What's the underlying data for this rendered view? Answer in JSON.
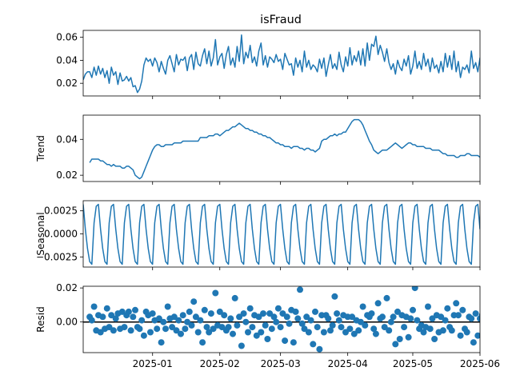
{
  "chart_data": {
    "type": "line",
    "title": "isFraud",
    "x_tick_labels": [
      "2025-01",
      "2025-02",
      "2025-03",
      "2025-04",
      "2025-05",
      "2025-06"
    ],
    "x_tick_dates": [
      "2025-01-01",
      "2025-02-01",
      "2025-03-01",
      "2025-04-01",
      "2025-05-01",
      "2025-06-01"
    ],
    "x_range": [
      "2024-11-30",
      "2025-06-01"
    ],
    "line_color": "#1f77b4",
    "panels": [
      {
        "name": "observed",
        "ylabel": "",
        "ylim": [
          0.009,
          0.066
        ],
        "yticks": [
          0.02,
          0.04,
          0.06
        ],
        "ytick_labels": [
          "0.02",
          "0.04",
          "0.06"
        ],
        "kind": "line",
        "values": [
          0.023,
          0.028,
          0.03,
          0.03,
          0.025,
          0.034,
          0.027,
          0.035,
          0.028,
          0.033,
          0.025,
          0.031,
          0.02,
          0.034,
          0.027,
          0.03,
          0.019,
          0.029,
          0.022,
          0.023,
          0.026,
          0.022,
          0.025,
          0.017,
          0.018,
          0.012,
          0.015,
          0.022,
          0.036,
          0.042,
          0.039,
          0.041,
          0.035,
          0.042,
          0.038,
          0.03,
          0.039,
          0.033,
          0.028,
          0.04,
          0.044,
          0.037,
          0.03,
          0.045,
          0.036,
          0.041,
          0.04,
          0.043,
          0.031,
          0.042,
          0.045,
          0.032,
          0.047,
          0.037,
          0.035,
          0.044,
          0.05,
          0.037,
          0.048,
          0.035,
          0.042,
          0.058,
          0.036,
          0.043,
          0.046,
          0.033,
          0.045,
          0.052,
          0.036,
          0.042,
          0.034,
          0.052,
          0.039,
          0.062,
          0.037,
          0.047,
          0.042,
          0.053,
          0.038,
          0.043,
          0.035,
          0.048,
          0.055,
          0.036,
          0.044,
          0.034,
          0.043,
          0.041,
          0.038,
          0.045,
          0.039,
          0.041,
          0.032,
          0.046,
          0.041,
          0.036,
          0.037,
          0.027,
          0.042,
          0.034,
          0.04,
          0.03,
          0.048,
          0.034,
          0.04,
          0.032,
          0.036,
          0.034,
          0.03,
          0.041,
          0.033,
          0.042,
          0.026,
          0.036,
          0.045,
          0.033,
          0.037,
          0.032,
          0.047,
          0.036,
          0.03,
          0.043,
          0.035,
          0.051,
          0.036,
          0.044,
          0.039,
          0.048,
          0.036,
          0.05,
          0.035,
          0.055,
          0.04,
          0.054,
          0.052,
          0.061,
          0.045,
          0.053,
          0.047,
          0.039,
          0.05,
          0.038,
          0.032,
          0.037,
          0.028,
          0.04,
          0.034,
          0.031,
          0.041,
          0.035,
          0.044,
          0.028,
          0.035,
          0.048,
          0.033,
          0.039,
          0.032,
          0.046,
          0.035,
          0.041,
          0.03,
          0.042,
          0.033,
          0.036,
          0.029,
          0.039,
          0.03,
          0.046,
          0.034,
          0.044,
          0.032,
          0.048,
          0.03,
          0.039,
          0.025,
          0.034,
          0.032,
          0.036,
          0.029,
          0.048,
          0.033,
          0.038,
          0.03,
          0.042,
          0.022,
          0.029,
          0.035,
          0.032,
          0.041,
          0.025,
          0.036,
          0.03,
          0.042,
          0.029,
          0.024,
          0.04,
          0.035,
          0.049,
          0.037,
          0.031,
          0.043,
          0.038,
          0.029,
          0.037,
          0.046,
          0.035,
          0.041,
          0.032,
          0.044,
          0.036,
          0.04,
          0.033,
          0.045,
          0.027,
          0.034,
          0.05,
          0.036,
          0.049,
          0.038,
          0.047,
          0.04,
          0.03,
          0.043,
          0.04
        ]
      },
      {
        "name": "trend",
        "ylabel": "Trend",
        "ylim": [
          0.0165,
          0.0535
        ],
        "yticks": [
          0.02,
          0.04
        ],
        "ytick_labels": [
          "0.02",
          "0.04"
        ],
        "kind": "line",
        "offset_points": 3,
        "values": [
          0.027,
          0.029,
          0.029,
          0.029,
          0.029,
          0.028,
          0.028,
          0.027,
          0.026,
          0.026,
          0.025,
          0.026,
          0.025,
          0.025,
          0.025,
          0.024,
          0.024,
          0.025,
          0.025,
          0.024,
          0.023,
          0.02,
          0.019,
          0.018,
          0.019,
          0.022,
          0.025,
          0.028,
          0.031,
          0.034,
          0.036,
          0.037,
          0.037,
          0.036,
          0.036,
          0.037,
          0.037,
          0.037,
          0.037,
          0.038,
          0.038,
          0.038,
          0.038,
          0.039,
          0.039,
          0.039,
          0.039,
          0.039,
          0.039,
          0.039,
          0.039,
          0.041,
          0.041,
          0.041,
          0.041,
          0.042,
          0.042,
          0.042,
          0.043,
          0.043,
          0.042,
          0.043,
          0.044,
          0.045,
          0.045,
          0.046,
          0.047,
          0.047,
          0.048,
          0.049,
          0.048,
          0.047,
          0.046,
          0.046,
          0.045,
          0.045,
          0.044,
          0.044,
          0.043,
          0.043,
          0.042,
          0.042,
          0.041,
          0.041,
          0.04,
          0.039,
          0.038,
          0.038,
          0.037,
          0.037,
          0.036,
          0.036,
          0.036,
          0.035,
          0.036,
          0.036,
          0.036,
          0.035,
          0.035,
          0.034,
          0.035,
          0.035,
          0.034,
          0.034,
          0.033,
          0.034,
          0.035,
          0.039,
          0.04,
          0.04,
          0.041,
          0.042,
          0.042,
          0.043,
          0.042,
          0.043,
          0.043,
          0.044,
          0.044,
          0.046,
          0.048,
          0.05,
          0.051,
          0.051,
          0.051,
          0.05,
          0.048,
          0.045,
          0.042,
          0.039,
          0.037,
          0.034,
          0.033,
          0.032,
          0.033,
          0.034,
          0.034,
          0.034,
          0.035,
          0.036,
          0.037,
          0.038,
          0.037,
          0.036,
          0.035,
          0.036,
          0.037,
          0.038,
          0.038,
          0.037,
          0.037,
          0.036,
          0.036,
          0.036,
          0.036,
          0.035,
          0.035,
          0.035,
          0.034,
          0.034,
          0.034,
          0.034,
          0.033,
          0.032,
          0.032,
          0.031,
          0.031,
          0.031,
          0.031,
          0.03,
          0.03,
          0.031,
          0.031,
          0.031,
          0.032,
          0.032,
          0.031,
          0.031,
          0.031,
          0.031,
          0.03,
          0.03,
          0.029,
          0.029,
          0.028,
          0.03,
          0.031,
          0.031,
          0.031,
          0.032,
          0.032,
          0.033,
          0.034,
          0.035,
          0.035,
          0.035,
          0.035,
          0.036,
          0.036,
          0.037,
          0.037,
          0.037,
          0.038,
          0.038,
          0.038,
          0.039,
          0.039,
          0.039,
          0.039,
          0.04,
          0.04,
          0.041,
          0.042,
          0.042,
          0.041
        ]
      },
      {
        "name": "seasonal",
        "ylabel": "Seasonal",
        "ylim": [
          -0.0036,
          0.0036
        ],
        "yticks": [
          -0.0025,
          0.0,
          0.0025
        ],
        "ytick_labels": [
          "−0.0025",
          "0.0000",
          "0.0025"
        ],
        "kind": "line",
        "period_values": [
          0.0032,
          0.0005,
          -0.0016,
          -0.003,
          -0.0033,
          0.0012,
          0.003
        ]
      },
      {
        "name": "resid",
        "ylabel": "Resid",
        "ylim": [
          -0.018,
          0.021
        ],
        "yticks": [
          -0.0,
          0.01,
          0.02
        ],
        "ytick_labels": [
          "0.00",
          "0.02"
        ],
        "ytick_label_values": [
          0.0,
          0.02
        ],
        "kind": "scatter",
        "zero_line": true,
        "offset_points": 3,
        "values": [
          0.003,
          0.001,
          0.009,
          -0.005,
          0.004,
          -0.006,
          0.003,
          -0.004,
          0.008,
          -0.003,
          0.004,
          -0.005,
          0.002,
          0.005,
          -0.004,
          0.006,
          -0.003,
          0.004,
          0.006,
          -0.005,
          0.003,
          0.007,
          -0.003,
          -0.004,
          0.001,
          -0.008,
          0.006,
          0.004,
          -0.006,
          0.005,
          0.001,
          -0.004,
          0.002,
          -0.012,
          0.0,
          -0.004,
          0.009,
          0.002,
          -0.003,
          0.003,
          -0.005,
          0.001,
          -0.007,
          0.004,
          -0.004,
          0.0,
          0.006,
          -0.002,
          0.012,
          0.003,
          -0.006,
          0.001,
          -0.012,
          0.007,
          -0.003,
          -0.006,
          0.005,
          -0.004,
          0.017,
          -0.002,
          0.006,
          -0.003,
          0.004,
          -0.005,
          -0.003,
          0.002,
          -0.007,
          0.014,
          -0.002,
          0.003,
          -0.014,
          0.005,
          0.0,
          -0.006,
          0.008,
          -0.003,
          0.004,
          -0.008,
          0.003,
          -0.006,
          0.005,
          -0.002,
          -0.01,
          0.005,
          -0.004,
          0.003,
          0.0,
          0.008,
          -0.003,
          0.005,
          -0.011,
          0.003,
          -0.001,
          0.007,
          -0.012,
          0.006,
          0.002,
          0.019,
          -0.001,
          -0.004,
          0.003,
          -0.006,
          0.001,
          -0.013,
          0.006,
          -0.003,
          -0.016,
          0.004,
          -0.006,
          0.004,
          0.002,
          -0.005,
          -0.002,
          0.015,
          0.005,
          0.001,
          -0.003,
          0.004,
          -0.006,
          0.003,
          -0.004,
          0.003,
          -0.007,
          0.001,
          -0.005,
          0.0,
          0.009,
          -0.002,
          0.004,
          0.003,
          0.005,
          -0.004,
          -0.007,
          0.011,
          0.002,
          0.003,
          -0.003,
          0.014,
          -0.005,
          0.0,
          0.003,
          -0.013,
          0.006,
          -0.01,
          0.004,
          -0.003,
          0.003,
          -0.009,
          0.002,
          0.007,
          0.02,
          0.001,
          -0.004,
          -0.002,
          -0.006,
          -0.003,
          0.009,
          -0.004,
          0.002,
          -0.01,
          0.004,
          -0.006,
          0.003,
          -0.005,
          0.001,
          0.008,
          -0.003,
          -0.005,
          0.004,
          0.011,
          0.004,
          -0.008,
          0.007,
          -0.004,
          -0.006,
          0.003,
          0.002,
          -0.012,
          0.005,
          -0.008,
          0.002,
          0.004,
          -0.005,
          0.008,
          0.01,
          -0.003,
          0.004,
          0.001,
          0.014,
          -0.003,
          0.005,
          -0.004,
          0.001,
          0.011,
          -0.009,
          0.005,
          0.009,
          -0.005,
          0.003,
          -0.006,
          0.004,
          -0.003,
          0.002,
          -0.008,
          0.003,
          -0.003,
          0.01,
          -0.002,
          0.007,
          0.013,
          -0.015,
          0.006,
          0.009,
          -0.002,
          0.004,
          -0.008
        ]
      }
    ]
  }
}
